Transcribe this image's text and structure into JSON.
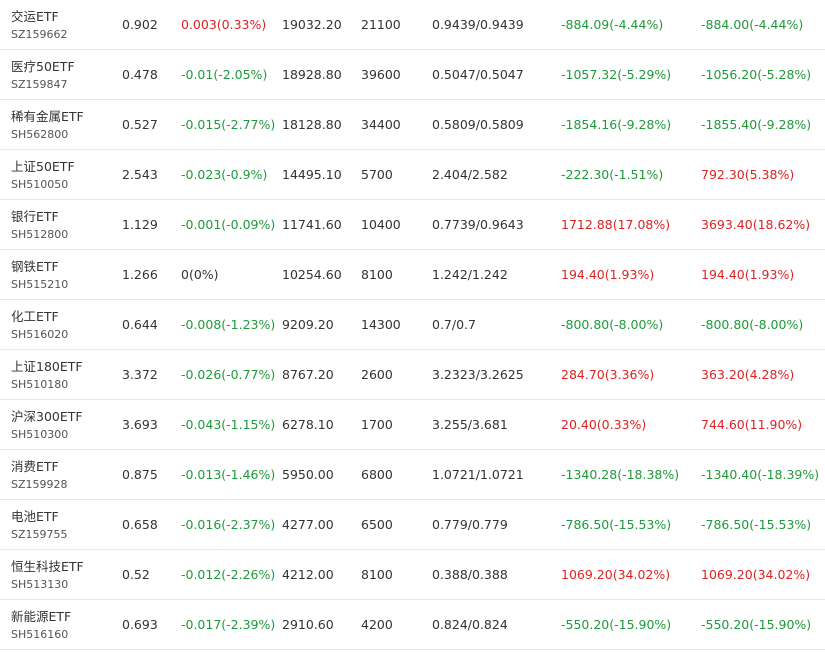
{
  "colors": {
    "up": "#e02222",
    "down": "#1f9a3a",
    "flat": "#333333"
  },
  "rows": [
    {
      "name": "交运ETF",
      "code": "SZ159662",
      "price": "0.902",
      "change": "0.003(0.33%)",
      "change_dir": "up",
      "value": "19032.20",
      "qty": "21100",
      "cost": "0.9439/0.9439",
      "pl1": "-884.09(-4.44%)",
      "pl1_dir": "down",
      "pl2": "-884.00(-4.44%)",
      "pl2_dir": "down"
    },
    {
      "name": "医疗50ETF",
      "code": "SZ159847",
      "price": "0.478",
      "change": "-0.01(-2.05%)",
      "change_dir": "down",
      "value": "18928.80",
      "qty": "39600",
      "cost": "0.5047/0.5047",
      "pl1": "-1057.32(-5.29%)",
      "pl1_dir": "down",
      "pl2": "-1056.20(-5.28%)",
      "pl2_dir": "down"
    },
    {
      "name": "稀有金属ETF",
      "code": "SH562800",
      "price": "0.527",
      "change": "-0.015(-2.77%)",
      "change_dir": "down",
      "value": "18128.80",
      "qty": "34400",
      "cost": "0.5809/0.5809",
      "pl1": "-1854.16(-9.28%)",
      "pl1_dir": "down",
      "pl2": "-1855.40(-9.28%)",
      "pl2_dir": "down"
    },
    {
      "name": "上证50ETF",
      "code": "SH510050",
      "price": "2.543",
      "change": "-0.023(-0.9%)",
      "change_dir": "down",
      "value": "14495.10",
      "qty": "5700",
      "cost": "2.404/2.582",
      "pl1": "-222.30(-1.51%)",
      "pl1_dir": "down",
      "pl2": "792.30(5.38%)",
      "pl2_dir": "up"
    },
    {
      "name": "银行ETF",
      "code": "SH512800",
      "price": "1.129",
      "change": "-0.001(-0.09%)",
      "change_dir": "down",
      "value": "11741.60",
      "qty": "10400",
      "cost": "0.7739/0.9643",
      "pl1": "1712.88(17.08%)",
      "pl1_dir": "up",
      "pl2": "3693.40(18.62%)",
      "pl2_dir": "up"
    },
    {
      "name": "钢铁ETF",
      "code": "SH515210",
      "price": "1.266",
      "change": "0(0%)",
      "change_dir": "flat",
      "value": "10254.60",
      "qty": "8100",
      "cost": "1.242/1.242",
      "pl1": "194.40(1.93%)",
      "pl1_dir": "up",
      "pl2": "194.40(1.93%)",
      "pl2_dir": "up"
    },
    {
      "name": "化工ETF",
      "code": "SH516020",
      "price": "0.644",
      "change": "-0.008(-1.23%)",
      "change_dir": "down",
      "value": "9209.20",
      "qty": "14300",
      "cost": "0.7/0.7",
      "pl1": "-800.80(-8.00%)",
      "pl1_dir": "down",
      "pl2": "-800.80(-8.00%)",
      "pl2_dir": "down"
    },
    {
      "name": "上证180ETF",
      "code": "SH510180",
      "price": "3.372",
      "change": "-0.026(-0.77%)",
      "change_dir": "down",
      "value": "8767.20",
      "qty": "2600",
      "cost": "3.2323/3.2625",
      "pl1": "284.70(3.36%)",
      "pl1_dir": "up",
      "pl2": "363.20(4.28%)",
      "pl2_dir": "up"
    },
    {
      "name": "沪深300ETF",
      "code": "SH510300",
      "price": "3.693",
      "change": "-0.043(-1.15%)",
      "change_dir": "down",
      "value": "6278.10",
      "qty": "1700",
      "cost": "3.255/3.681",
      "pl1": "20.40(0.33%)",
      "pl1_dir": "up",
      "pl2": "744.60(11.90%)",
      "pl2_dir": "up"
    },
    {
      "name": "消费ETF",
      "code": "SZ159928",
      "price": "0.875",
      "change": "-0.013(-1.46%)",
      "change_dir": "down",
      "value": "5950.00",
      "qty": "6800",
      "cost": "1.0721/1.0721",
      "pl1": "-1340.28(-18.38%)",
      "pl1_dir": "down",
      "pl2": "-1340.40(-18.39%)",
      "pl2_dir": "down"
    },
    {
      "name": "电池ETF",
      "code": "SZ159755",
      "price": "0.658",
      "change": "-0.016(-2.37%)",
      "change_dir": "down",
      "value": "4277.00",
      "qty": "6500",
      "cost": "0.779/0.779",
      "pl1": "-786.50(-15.53%)",
      "pl1_dir": "down",
      "pl2": "-786.50(-15.53%)",
      "pl2_dir": "down"
    },
    {
      "name": "恒生科技ETF",
      "code": "SH513130",
      "price": "0.52",
      "change": "-0.012(-2.26%)",
      "change_dir": "down",
      "value": "4212.00",
      "qty": "8100",
      "cost": "0.388/0.388",
      "pl1": "1069.20(34.02%)",
      "pl1_dir": "up",
      "pl2": "1069.20(34.02%)",
      "pl2_dir": "up"
    },
    {
      "name": "新能源ETF",
      "code": "SH516160",
      "price": "0.693",
      "change": "-0.017(-2.39%)",
      "change_dir": "down",
      "value": "2910.60",
      "qty": "4200",
      "cost": "0.824/0.824",
      "pl1": "-550.20(-15.90%)",
      "pl1_dir": "down",
      "pl2": "-550.20(-15.90%)",
      "pl2_dir": "down"
    }
  ]
}
